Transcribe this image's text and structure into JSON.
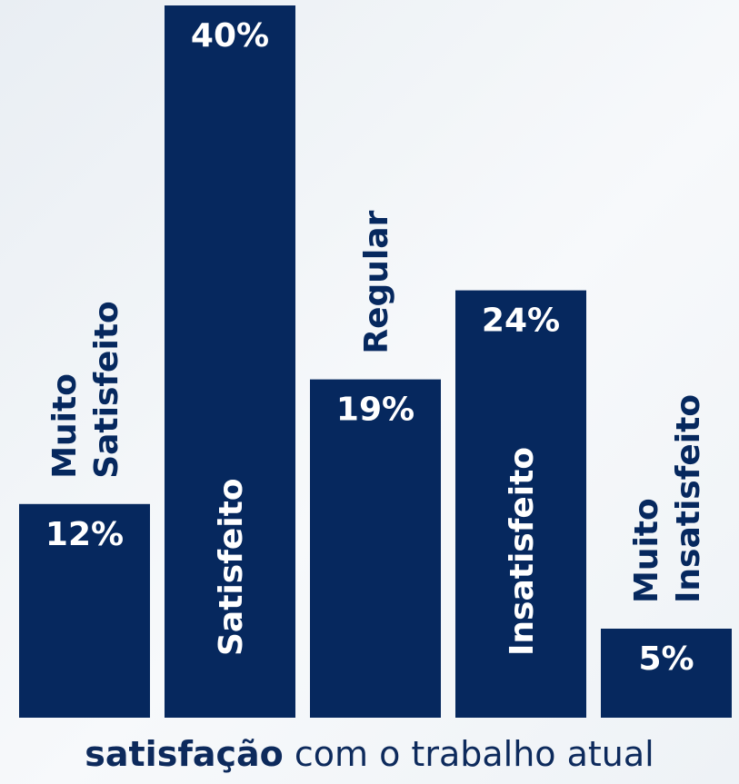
{
  "chart_data": {
    "type": "bar",
    "categories": [
      "Muito Satisfeito",
      "Satisfeito",
      "Regular",
      "Insatisfeito",
      "Muito Insatisfeito"
    ],
    "category_lines": [
      [
        "Muito",
        "Satisfeito"
      ],
      [
        "Satisfeito"
      ],
      [
        "Regular"
      ],
      [
        "Insatisfeito"
      ],
      [
        "Muito",
        "Insatisfeito"
      ]
    ],
    "values": [
      12,
      40,
      19,
      24,
      5
    ],
    "value_labels": [
      "12%",
      "40%",
      "19%",
      "24%",
      "5%"
    ],
    "ylim": [
      0,
      40
    ],
    "grid": false,
    "bar_color": "#06285e",
    "text_color_on_bar": "#ffffff",
    "text_color_outside": "#06285e",
    "caption_bold": "satisfação",
    "caption_rest": " com o trabalho atual"
  }
}
